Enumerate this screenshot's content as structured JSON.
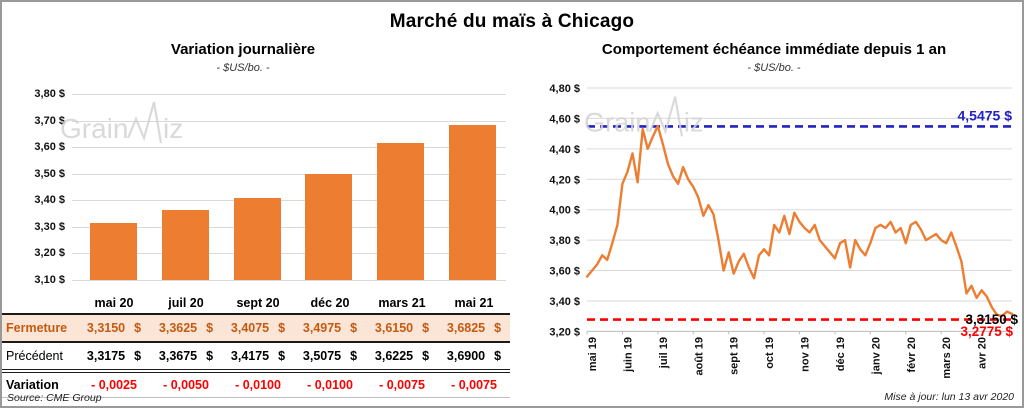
{
  "page": {
    "title": "Marché du maïs à Chicago",
    "source": "Source: CME Group",
    "updated": "Mise à jour: lun 13 avr 2020",
    "watermark": {
      "part1": "Grain",
      "part2": "iz"
    }
  },
  "colors": {
    "accent_orange": "#ED7D31",
    "fermeture_bg": "#FBE5D6",
    "fermeture_text": "#C55A11",
    "variation_text": "#FF0000",
    "resistance_blue": "#2222C0",
    "support_red": "#FF0000",
    "grid": "#D9D9D9",
    "axis": "#BFBFBF",
    "frame_border": "#999999"
  },
  "table": {
    "currency": "$",
    "columns": [
      "mai 20",
      "juil 20",
      "sept 20",
      "déc 20",
      "mars 21",
      "mai 21"
    ],
    "rows": [
      {
        "label": "Fermeture",
        "values": [
          "3,3150",
          "3,3625",
          "3,4075",
          "3,4975",
          "3,6150",
          "3,6825"
        ],
        "with_currency": true
      },
      {
        "label": "Précédent",
        "values": [
          "3,3175",
          "3,3675",
          "3,4175",
          "3,5075",
          "3,6225",
          "3,6900"
        ],
        "with_currency": true
      },
      {
        "label": "Variation",
        "values": [
          "- 0,0025",
          "- 0,0050",
          "- 0,0100",
          "- 0,0100",
          "- 0,0075",
          "- 0,0075"
        ],
        "with_currency": false
      }
    ]
  },
  "chart_data": [
    {
      "type": "bar",
      "title": "Variation  journalière",
      "subtitle": "- $US/bo. -",
      "categories": [
        "mai 20",
        "juil 20",
        "sept 20",
        "déc 20",
        "mars 21",
        "mai 21"
      ],
      "values": [
        3.315,
        3.3625,
        3.4075,
        3.4975,
        3.615,
        3.6825
      ],
      "ylim": [
        3.1,
        3.8
      ],
      "ytick_labels": [
        "3,80 $",
        "3,70 $",
        "3,60 $",
        "3,50 $",
        "3,40 $",
        "3,30 $",
        "3,20 $",
        "3,10 $"
      ],
      "grid": true,
      "bar_color": "#ED7D31"
    },
    {
      "type": "line",
      "title": "Comportement  échéance  immédiate  depuis  1 an",
      "subtitle": "- $US/bo. -",
      "xlabel": "",
      "ylabel": "",
      "ylim": [
        3.2,
        4.8
      ],
      "ytick_labels": [
        "4,80 $",
        "4,60 $",
        "4,40 $",
        "4,20 $",
        "4,00 $",
        "3,80 $",
        "3,60 $",
        "3,40 $",
        "3,20 $"
      ],
      "x_labels": [
        "mai 19",
        "juin 19",
        "juil 19",
        "août 19",
        "sept 19",
        "oct 19",
        "nov 19",
        "déc 19",
        "janv 20",
        "févr 20",
        "mars 20",
        "avr 20"
      ],
      "grid": true,
      "series": [
        {
          "name": "échéance immédiate",
          "color": "#ED7D31",
          "values": [
            3.56,
            3.6,
            3.64,
            3.7,
            3.67,
            3.78,
            3.9,
            4.17,
            4.25,
            4.37,
            4.18,
            4.53,
            4.4,
            4.48,
            4.55,
            4.43,
            4.3,
            4.22,
            4.17,
            4.28,
            4.2,
            4.15,
            4.08,
            3.96,
            4.03,
            3.97,
            3.8,
            3.6,
            3.72,
            3.58,
            3.66,
            3.71,
            3.62,
            3.55,
            3.7,
            3.74,
            3.7,
            3.9,
            3.85,
            3.96,
            3.84,
            3.98,
            3.92,
            3.88,
            3.85,
            3.9,
            3.8,
            3.76,
            3.72,
            3.68,
            3.78,
            3.8,
            3.62,
            3.8,
            3.74,
            3.7,
            3.78,
            3.88,
            3.9,
            3.88,
            3.92,
            3.85,
            3.88,
            3.78,
            3.9,
            3.92,
            3.87,
            3.8,
            3.82,
            3.84,
            3.8,
            3.78,
            3.85,
            3.76,
            3.66,
            3.45,
            3.5,
            3.42,
            3.47,
            3.43,
            3.36,
            3.31,
            3.3,
            3.33,
            3.315
          ]
        }
      ],
      "reference_lines": [
        {
          "value": 4.5475,
          "label": "4,5475 $",
          "color": "#2222C0"
        },
        {
          "value": 3.2775,
          "label": "3,2775 $",
          "color": "#FF0000"
        }
      ],
      "last_point_label": {
        "text": "3,3150 $",
        "value": 3.315,
        "color": "#000000"
      }
    }
  ]
}
